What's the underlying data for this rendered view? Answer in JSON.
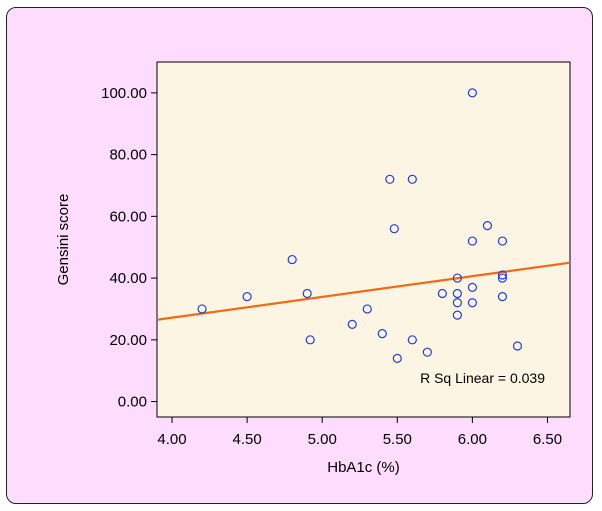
{
  "chart_data": {
    "type": "scatter",
    "xlabel": "HbA1c (%)",
    "ylabel": "Gensini score",
    "xlim": [
      3.9,
      6.65
    ],
    "ylim": [
      -5,
      110
    ],
    "x_ticks": [
      "4.00",
      "4.50",
      "5.00",
      "5.50",
      "6.00",
      "6.50"
    ],
    "y_ticks": [
      "0.00",
      "20.00",
      "40.00",
      "60.00",
      "80.00",
      "100.00"
    ],
    "grid": false,
    "series": [
      {
        "x": [
          4.2,
          4.5,
          4.8,
          4.9,
          4.92,
          5.2,
          5.3,
          5.4,
          5.45,
          5.48,
          5.5,
          5.6,
          5.6,
          5.7,
          5.8,
          5.9,
          5.9,
          5.9,
          5.9,
          6.0,
          6.0,
          6.0,
          6.0,
          6.1,
          6.2,
          6.2,
          6.2,
          6.2,
          6.3
        ],
        "y": [
          30,
          34,
          46,
          35,
          20,
          25,
          30,
          22,
          72,
          56,
          14,
          72,
          20,
          16,
          35,
          40,
          35,
          32,
          28,
          100,
          52,
          37,
          32,
          57,
          52,
          41,
          40,
          34,
          18
        ]
      }
    ],
    "fit_line": {
      "x": [
        3.9,
        6.65
      ],
      "y": [
        26.5,
        45
      ]
    },
    "annotation": "R Sq Linear = 0.039",
    "colors": {
      "background": "#fddcfd",
      "plot_area": "#fdf5e3",
      "marker_edge": "#1f3fd6",
      "fit_line": "#f06a16"
    }
  }
}
